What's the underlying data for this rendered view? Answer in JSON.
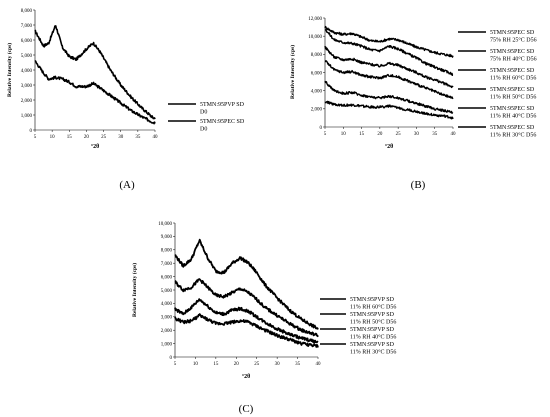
{
  "panels": [
    {
      "id": "A",
      "label": "(A)",
      "ylabel": "Relative Intensity (cps)",
      "xlabel": "°2θ",
      "x_ticks": [
        "5",
        "10",
        "15",
        "20",
        "25",
        "30",
        "35",
        "40"
      ],
      "y_ticks": [
        "0",
        "1,000",
        "2,000",
        "3,000",
        "4,000",
        "5,000",
        "6,000",
        "7,000",
        "8,000"
      ],
      "legend": [
        {
          "lines": [
            "5TMN:95PVP SD",
            "D0"
          ]
        },
        {
          "lines": [
            "5TMN:95PEC SD",
            "D0"
          ]
        }
      ]
    },
    {
      "id": "B",
      "label": "(B)",
      "ylabel": "Relative Intensity (cps)",
      "xlabel": "°2θ",
      "x_ticks": [
        "5",
        "10",
        "15",
        "20",
        "25",
        "30",
        "35",
        "40"
      ],
      "y_ticks": [
        "0",
        "2,000",
        "4,000",
        "6,000",
        "8,000",
        "10,000",
        "12,000"
      ],
      "legend": [
        {
          "lines": [
            "5TMN:95PEC SD",
            "75% RH 25°C D56"
          ]
        },
        {
          "lines": [
            "5TMN:95PEC SD",
            "75% RH 40°C D56"
          ]
        },
        {
          "lines": [
            "5TMN:95PEC SD",
            "11% RH 60°C D56"
          ]
        },
        {
          "lines": [
            "5TMN:95PEC SD",
            "11% RH 50°C D56"
          ]
        },
        {
          "lines": [
            "5TMN:95PEC SD",
            "11% RH 40°C D56"
          ]
        },
        {
          "lines": [
            "5TMN:95PEC SD",
            "11% RH 30°C D56"
          ]
        }
      ]
    },
    {
      "id": "C",
      "label": "(C)",
      "ylabel": "Relative Intensity (cps)",
      "xlabel": "°2θ",
      "x_ticks": [
        "5",
        "10",
        "15",
        "20",
        "25",
        "30",
        "35",
        "40"
      ],
      "y_ticks": [
        "0",
        "1,000",
        "2,000",
        "3,000",
        "4,000",
        "5,000",
        "6,000",
        "7,000",
        "8,000",
        "9,000",
        "10,000"
      ],
      "legend": [
        {
          "lines": [
            "5TMN:95PVP SD",
            "11% RH 60°C D56"
          ]
        },
        {
          "lines": [
            "5TMN:95PVP SD",
            "11% RH 50°C D56"
          ]
        },
        {
          "lines": [
            "5TMN:95PVP SD",
            "11% RH 40°C D56"
          ]
        },
        {
          "lines": [
            "5TMN:95PVP SD",
            "11% RH 30°C D56"
          ]
        }
      ]
    }
  ],
  "chart_data": [
    {
      "type": "line",
      "panel": "A",
      "xlabel": "°2θ",
      "ylabel": "Relative Intensity (cps)",
      "xlim": [
        5,
        40
      ],
      "ylim": [
        0,
        8000
      ],
      "x": [
        5,
        7.5,
        9,
        11,
        13,
        15,
        17,
        20,
        22,
        24,
        27,
        30,
        33,
        36,
        39.5
      ],
      "series": [
        {
          "name": "5TMN:95PVP SD D0",
          "values": [
            6600,
            5600,
            5800,
            7000,
            5500,
            4900,
            4700,
            5400,
            5800,
            5200,
            4000,
            3000,
            2200,
            1500,
            800
          ]
        },
        {
          "name": "5TMN:95PEC SD D0",
          "values": [
            4600,
            3800,
            3400,
            3500,
            3400,
            3200,
            2900,
            2900,
            3100,
            2800,
            2300,
            1800,
            1300,
            900,
            500
          ]
        }
      ]
    },
    {
      "type": "line",
      "panel": "B",
      "xlabel": "°2θ",
      "ylabel": "Relative Intensity (cps)",
      "xlim": [
        5,
        40
      ],
      "ylim": [
        0,
        12000
      ],
      "x": [
        5,
        7.5,
        10,
        12.5,
        15,
        17.5,
        20,
        22.5,
        25,
        27.5,
        30,
        32.5,
        35,
        37.5,
        40
      ],
      "series": [
        {
          "name": "5TMN:95PEC SD 75% RH 25°C D56",
          "values": [
            11000,
            10400,
            10200,
            10300,
            9900,
            9500,
            9400,
            9700,
            9600,
            9200,
            8800,
            8500,
            8200,
            8000,
            7800
          ]
        },
        {
          "name": "5TMN:95PEC SD 75% RH 40°C D56",
          "values": [
            10800,
            9600,
            9300,
            9200,
            8900,
            8500,
            8400,
            8900,
            8600,
            8100,
            7600,
            7000,
            6600,
            6200,
            5800
          ]
        },
        {
          "name": "5TMN:95PEC SD 11% RH 60°C D56",
          "values": [
            8800,
            7700,
            7400,
            7500,
            7100,
            6900,
            6700,
            7000,
            6800,
            6400,
            6000,
            5500,
            5200,
            4800,
            4400
          ]
        },
        {
          "name": "5TMN:95PEC SD 11% RH 50°C D56",
          "values": [
            7300,
            6300,
            6000,
            6100,
            5700,
            5500,
            5400,
            5700,
            5500,
            5100,
            4700,
            4300,
            3900,
            3500,
            3200
          ]
        },
        {
          "name": "5TMN:95PEC SD 11% RH 40°C D56",
          "values": [
            5000,
            4000,
            3700,
            3800,
            3500,
            3300,
            3200,
            3400,
            3200,
            2900,
            2600,
            2300,
            2000,
            1800,
            1600
          ]
        },
        {
          "name": "5TMN:95PEC SD 11% RH 30°C D56",
          "values": [
            2800,
            2500,
            2400,
            2400,
            2300,
            2200,
            2200,
            2300,
            2100,
            1900,
            1700,
            1500,
            1300,
            1200,
            1000
          ]
        }
      ]
    },
    {
      "type": "line",
      "panel": "C",
      "xlabel": "°2θ",
      "ylabel": "Relative Intensity (cps)",
      "xlim": [
        5,
        40
      ],
      "ylim": [
        0,
        10000
      ],
      "x": [
        5,
        7,
        9,
        11,
        13,
        15,
        17,
        19,
        21,
        23,
        25,
        27,
        30,
        33,
        36,
        40
      ],
      "series": [
        {
          "name": "5TMN:95PVP SD 11% RH 60°C D56",
          "values": [
            7600,
            6800,
            7300,
            8700,
            7400,
            6400,
            6300,
            7000,
            7400,
            7000,
            6300,
            5400,
            4400,
            3500,
            2800,
            2100
          ]
        },
        {
          "name": "5TMN:95PVP SD 11% RH 50°C D56",
          "values": [
            5600,
            5000,
            5200,
            5800,
            5200,
            4600,
            4500,
            4800,
            5100,
            4800,
            4300,
            3700,
            3100,
            2500,
            2000,
            1600
          ]
        },
        {
          "name": "5TMN:95PVP SD 11% RH 40°C D56",
          "values": [
            3600,
            3200,
            3700,
            4300,
            3800,
            3300,
            3200,
            3500,
            3600,
            3400,
            3000,
            2600,
            2100,
            1700,
            1400,
            1100
          ]
        },
        {
          "name": "5TMN:95PVP SD 11% RH 30°C D56",
          "values": [
            2900,
            2600,
            2700,
            3100,
            2800,
            2500,
            2500,
            2600,
            2700,
            2600,
            2300,
            2000,
            1600,
            1300,
            1000,
            800
          ]
        }
      ]
    }
  ]
}
